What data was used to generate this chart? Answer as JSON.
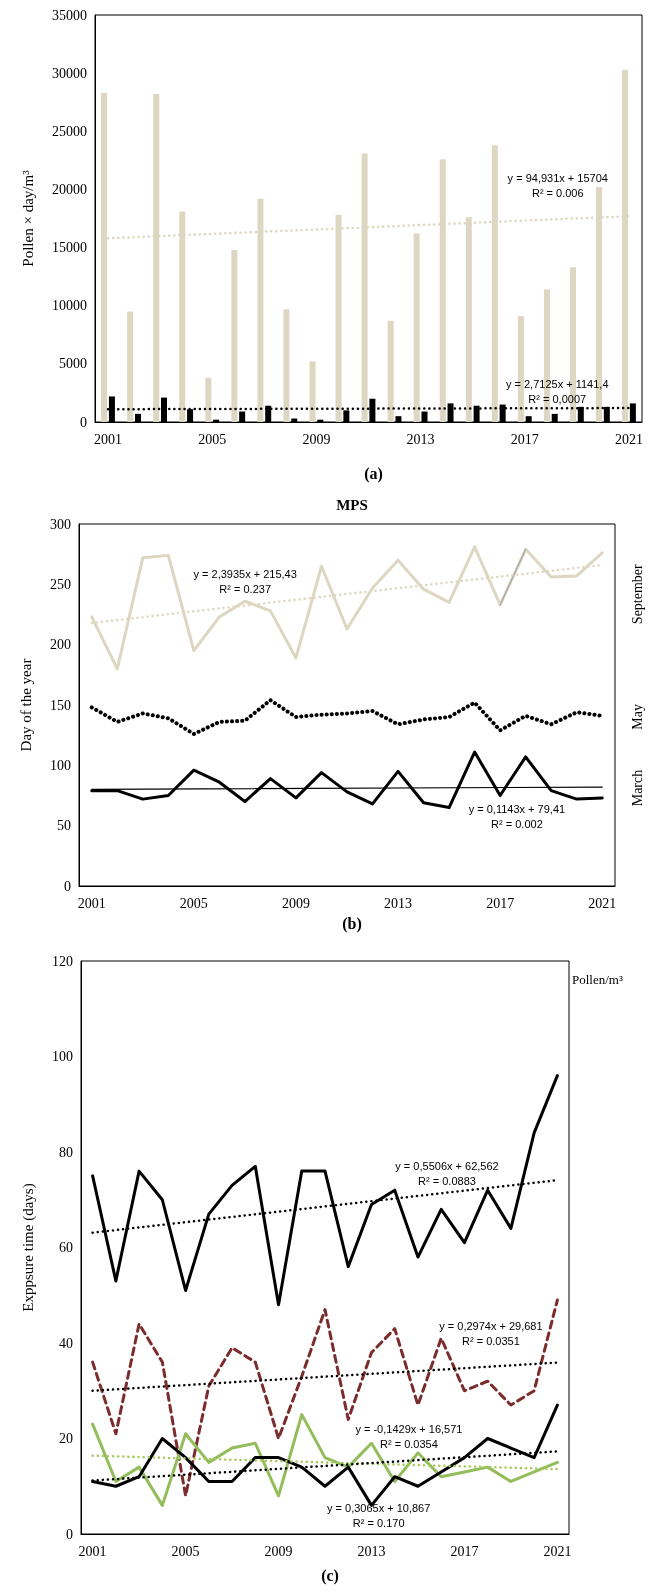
{
  "chart_data": [
    {
      "type": "bar",
      "subtitle": "(a)",
      "ylabel": "Pollen × day/m³",
      "xlim": [
        2000.5,
        2021.5
      ],
      "xticks": [
        2001,
        2005,
        2009,
        2013,
        2017,
        2021
      ],
      "ylim": [
        0,
        35000
      ],
      "yticks": [
        0,
        5000,
        10000,
        15000,
        20000,
        25000,
        30000,
        35000
      ],
      "grid": false,
      "legend": false,
      "marker": "none",
      "x": [
        2001,
        2002,
        2003,
        2004,
        2005,
        2006,
        2007,
        2008,
        2009,
        2010,
        2011,
        2012,
        2013,
        2014,
        2015,
        2016,
        2017,
        2018,
        2019,
        2020,
        2021
      ],
      "series": [
        {
          "color": "#ddd6c1",
          "values": [
            28300,
            9500,
            28200,
            18100,
            3800,
            14800,
            19200,
            9700,
            5200,
            17800,
            23100,
            8700,
            16200,
            22600,
            17600,
            23800,
            9100,
            11400,
            13300,
            20200,
            30300
          ]
        },
        {
          "color": "#000000",
          "values": [
            2200,
            700,
            2100,
            1100,
            200,
            900,
            1400,
            300,
            200,
            1000,
            2000,
            500,
            900,
            1600,
            1400,
            1500,
            500,
            700,
            1300,
            1300,
            1600
          ]
        },
        {
          "type": "line",
          "line_style": "dotted",
          "color": "#ddd6c1",
          "x": [
            2001,
            2021
          ],
          "values": [
            15800,
            17700
          ]
        },
        {
          "type": "line",
          "line_style": "dotted",
          "color": "#000000",
          "x": [
            2001,
            2021
          ],
          "values": [
            1100,
            1200
          ]
        }
      ],
      "annotations": [
        "y = 94,931x + 15704\nR² = 0.006",
        "y = 2,7125x + 1141,4\nR² = 0,0007"
      ]
    },
    {
      "type": "line",
      "title": "MPS",
      "subtitle": "(b)",
      "ylabel": "Day of the year",
      "xlim": [
        2000.5,
        2021.5
      ],
      "xticks": [
        2001,
        2005,
        2009,
        2013,
        2017,
        2021
      ],
      "ylim": [
        0,
        300
      ],
      "yticks": [
        0,
        50,
        100,
        150,
        200,
        250,
        300
      ],
      "grid": false,
      "legend": false,
      "marker": "none",
      "x": [
        2001,
        2002,
        2003,
        2004,
        2005,
        2006,
        2007,
        2008,
        2009,
        2010,
        2011,
        2012,
        2013,
        2014,
        2015,
        2016,
        2017,
        2018,
        2019,
        2020,
        2021
      ],
      "series": [
        {
          "name": "September",
          "color": "#ddd6c1",
          "line_style": "solid",
          "values": [
            223,
            180,
            272,
            274,
            195,
            223,
            236,
            228,
            189,
            265,
            213,
            247,
            270,
            246,
            235,
            281,
            233,
            279,
            256,
            257,
            276
          ]
        },
        {
          "color": "#a6a6a6",
          "line_style": "solid",
          "x": [
            2017,
            2018
          ],
          "values": [
            233,
            279
          ]
        },
        {
          "name": "May",
          "color": "#000000",
          "line_style": "dotted",
          "values": [
            148,
            136,
            143,
            139,
            126,
            136,
            137,
            154,
            140,
            142,
            143,
            145,
            134,
            138,
            140,
            152,
            129,
            141,
            134,
            144,
            141
          ]
        },
        {
          "name": "March",
          "color": "#000000",
          "line_style": "solid",
          "values": [
            79,
            79,
            72,
            75,
            96,
            86,
            70,
            89,
            73,
            94,
            78,
            68,
            95,
            69,
            65,
            111,
            75,
            107,
            79,
            72,
            73
          ]
        },
        {
          "color": "#ddd6c1",
          "line_style": "dotted",
          "x": [
            2001,
            2021
          ],
          "values": [
            218,
            266
          ]
        },
        {
          "color": "#000000",
          "line_style": "solid",
          "x": [
            2001,
            2021
          ],
          "values": [
            80,
            82
          ]
        }
      ],
      "annotations": [
        "y = 2,3935x + 215,43\nR² = 0.237",
        "y = 0,1143x + 79,41\nR² = 0.002"
      ]
    },
    {
      "type": "line",
      "subtitle": "(c)",
      "ylabel": "Exppsure time (days)",
      "xlim": [
        2000.5,
        2021.5
      ],
      "xticks": [
        2001,
        2005,
        2009,
        2013,
        2017,
        2021
      ],
      "ylim": [
        0,
        120
      ],
      "yticks": [
        0,
        20,
        40,
        60,
        80,
        100,
        120
      ],
      "grid": false,
      "legend": false,
      "marker": "none",
      "x": [
        2001,
        2002,
        2003,
        2004,
        2005,
        2006,
        2007,
        2008,
        2009,
        2010,
        2011,
        2012,
        2013,
        2014,
        2015,
        2016,
        2017,
        2018,
        2019,
        2020,
        2021
      ],
      "series": [
        {
          "color": "#000000",
          "line_style": "solid",
          "values": [
            75,
            53,
            76,
            70,
            51,
            67,
            73,
            77,
            48,
            76,
            76,
            56,
            69,
            72,
            58,
            68,
            61,
            72,
            64,
            84,
            96
          ]
        },
        {
          "color": "#7b2c2c",
          "line_style": "dashed",
          "values": [
            36,
            21,
            44,
            36,
            8,
            31,
            39,
            36,
            20,
            33,
            47,
            24,
            38,
            43,
            27,
            41,
            30,
            32,
            27,
            30,
            49
          ]
        },
        {
          "color": "#92bd5a",
          "line_style": "solid",
          "values": [
            23,
            11,
            14,
            6,
            21,
            15,
            18,
            19,
            8,
            25,
            16,
            14,
            19,
            11,
            17,
            12,
            13,
            14,
            11,
            13,
            15
          ]
        },
        {
          "color": "#000000",
          "line_style": "solid",
          "values": [
            11,
            10,
            12,
            20,
            16,
            11,
            11,
            16,
            16,
            14,
            10,
            14,
            6,
            12,
            10,
            13,
            16,
            20,
            18,
            16,
            27
          ]
        },
        {
          "color": "#000000",
          "line_style": "dotted",
          "x": [
            2001,
            2021
          ],
          "values": [
            63.1,
            74.1
          ]
        },
        {
          "color": "#000000",
          "line_style": "dotted",
          "x": [
            2001,
            2021
          ],
          "values": [
            30.0,
            35.9
          ]
        },
        {
          "color": "#a8c860",
          "line_style": "dotted",
          "x": [
            2001,
            2021
          ],
          "values": [
            16.4,
            13.6
          ]
        },
        {
          "color": "#000000",
          "line_style": "dotted",
          "x": [
            2001,
            2021
          ],
          "values": [
            11.2,
            17.3
          ]
        }
      ],
      "annotations": [
        "Pollen/m³",
        "y = 0,5506x + 62,562\nR² = 0.0883",
        "y = 0,2974x + 29,681\nR² = 0.0351",
        "y = -0,1429x + 16,571\nR² = 0.0354",
        "y = 0,3065x + 10,867\nR² = 0.170"
      ]
    }
  ]
}
